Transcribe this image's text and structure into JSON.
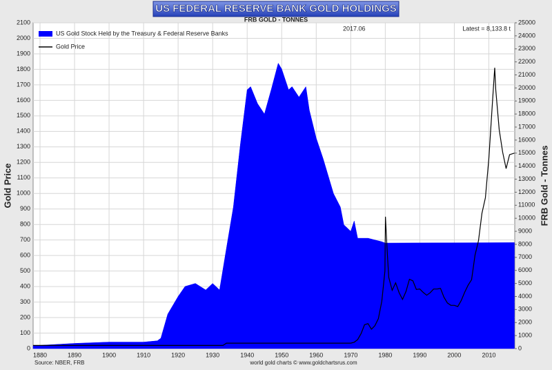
{
  "chart_data": {
    "type": "area-line",
    "title": "US FEDERAL RESERVE BANK GOLD HOLDINGS",
    "subtitle": "FRB GOLD - TONNES",
    "y_label": "Gold Price",
    "y2_label": "FRB Gold - Tonnes",
    "annotations": [
      "2017.06",
      "Latest = 8,133.8 t"
    ],
    "source": "Source: NBER, FRB",
    "credit": "world gold charts © www.goldchartsrus.com",
    "xlim": [
      1878,
      2017.5
    ],
    "xticks": [
      1880,
      1890,
      1900,
      1910,
      1920,
      1930,
      1940,
      1950,
      1960,
      1970,
      1980,
      1990,
      2000,
      2010
    ],
    "ylim": [
      0,
      2100
    ],
    "yticks": [
      0,
      100,
      200,
      300,
      400,
      500,
      600,
      700,
      800,
      900,
      1000,
      1100,
      1200,
      1300,
      1400,
      1500,
      1600,
      1700,
      1800,
      1900,
      2000,
      2100
    ],
    "y2lim": [
      0,
      25000
    ],
    "y2ticks": [
      0,
      1000,
      2000,
      3000,
      4000,
      5000,
      6000,
      7000,
      8000,
      9000,
      10000,
      11000,
      12000,
      13000,
      14000,
      15000,
      16000,
      17000,
      18000,
      19000,
      20000,
      21000,
      22000,
      23000,
      24000,
      25000
    ],
    "grid": true,
    "legend": "top-left",
    "series": [
      {
        "name": "US Gold Stock Held by the Treasury & Federal Reserve Banks",
        "color": "#0000ff",
        "kind": "area",
        "axis": "y2",
        "x": [
          1878,
          1880,
          1890,
          1900,
          1910,
          1914,
          1915,
          1917,
          1920,
          1922,
          1925,
          1928,
          1930,
          1932,
          1934,
          1936,
          1938,
          1940,
          1941,
          1943,
          1945,
          1947,
          1949,
          1950,
          1952,
          1953,
          1955,
          1957,
          1958,
          1960,
          1962,
          1965,
          1967,
          1968,
          1970,
          1971,
          1972,
          1975,
          1979,
          1980,
          2017.4
        ],
        "values": [
          250,
          250,
          400,
          500,
          500,
          600,
          800,
          2650,
          4000,
          4770,
          5000,
          4500,
          5000,
          4500,
          7700,
          10860,
          15600,
          19860,
          20100,
          18800,
          18000,
          19900,
          21900,
          21450,
          19860,
          20100,
          19300,
          20100,
          18300,
          16150,
          14570,
          11900,
          10860,
          9500,
          9000,
          9800,
          8470,
          8470,
          8200,
          8100,
          8134
        ]
      },
      {
        "name": "Gold Price",
        "color": "#000000",
        "kind": "line",
        "axis": "y",
        "x": [
          1878,
          1933,
          1934,
          1970,
          1971,
          1972,
          1973,
          1974,
          1975,
          1976,
          1977,
          1978,
          1979,
          1979.9,
          1980.05,
          1980.5,
          1981,
          1982,
          1983,
          1984,
          1985,
          1986,
          1987,
          1988,
          1989,
          1990,
          1991,
          1992,
          1993,
          1994,
          1995,
          1996,
          1997,
          1998,
          1999,
          2000,
          2001,
          2002,
          2003,
          2004,
          2005,
          2006,
          2007,
          2008,
          2009,
          2010,
          2011,
          2011.7,
          2012,
          2013,
          2014,
          2015,
          2016,
          2017.4
        ],
        "values": [
          20.67,
          20.67,
          35,
          35,
          41,
          58,
          97,
          154,
          161,
          125,
          148,
          193,
          306,
          500,
          850,
          650,
          460,
          376,
          424,
          361,
          317,
          368,
          447,
          437,
          381,
          384,
          362,
          344,
          360,
          384,
          384,
          388,
          331,
          294,
          279,
          279,
          271,
          310,
          363,
          409,
          444,
          603,
          695,
          872,
          972,
          1225,
          1572,
          1810,
          1669,
          1411,
          1266,
          1160,
          1250,
          1260
        ]
      }
    ]
  }
}
